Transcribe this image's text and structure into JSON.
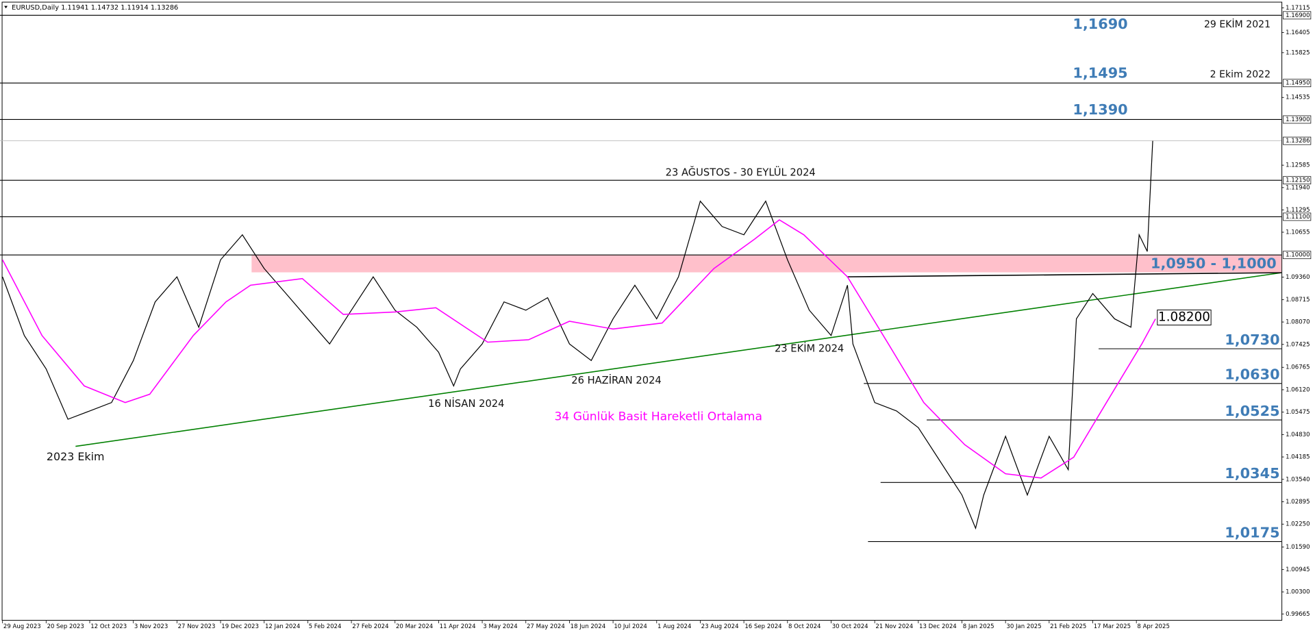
{
  "chart_data": {
    "type": "line",
    "title": "EURUSD,Daily  1.11941 1.14732 1.11914 1.13286",
    "xlim": [
      -0.923,
      469.23
    ],
    "ylim": [
      0.9947,
      1.1734
    ],
    "xticks": [
      {
        "value": 0,
        "label": "29 Aug 2023"
      },
      {
        "value": 16,
        "label": "20 Sep 2023"
      },
      {
        "value": 32,
        "label": "12 Oct 2023"
      },
      {
        "value": 48,
        "label": "3 Nov 2023"
      },
      {
        "value": 64,
        "label": "27 Nov 2023"
      },
      {
        "value": 80,
        "label": "19 Dec 2023"
      },
      {
        "value": 96,
        "label": "12 Jan 2024"
      },
      {
        "value": 112,
        "label": "5 Feb 2024"
      },
      {
        "value": 128,
        "label": "27 Feb 2024"
      },
      {
        "value": 144,
        "label": "20 Mar 2024"
      },
      {
        "value": 160,
        "label": "11 Apr 2024"
      },
      {
        "value": 176,
        "label": "3 May 2024"
      },
      {
        "value": 192,
        "label": "27 May 2024"
      },
      {
        "value": 208,
        "label": "18 Jun 2024"
      },
      {
        "value": 224,
        "label": "10 Jul 2024"
      },
      {
        "value": 240,
        "label": "1 Aug 2024"
      },
      {
        "value": 256,
        "label": "23 Aug 2024"
      },
      {
        "value": 272,
        "label": "16 Sep 2024"
      },
      {
        "value": 288,
        "label": "8 Oct 2024"
      },
      {
        "value": 304,
        "label": "30 Oct 2024"
      },
      {
        "value": 320,
        "label": "21 Nov 2024"
      },
      {
        "value": 336,
        "label": "13 Dec 2024"
      },
      {
        "value": 352,
        "label": "8 Jan 2025"
      },
      {
        "value": 368,
        "label": "30 Jan 2025"
      },
      {
        "value": 384,
        "label": "21 Feb 2025"
      },
      {
        "value": 400,
        "label": "17 Mar 2025"
      },
      {
        "value": 416,
        "label": "8 Apr 2025"
      }
    ],
    "yticks": [
      {
        "value": 1.17115,
        "label": "1.17115"
      },
      {
        "value": 1.16405,
        "label": "1.16405"
      },
      {
        "value": 1.15825,
        "label": "1.15825"
      },
      {
        "value": 1.14535,
        "label": "1.14535"
      },
      {
        "value": 1.12585,
        "label": "1.12585"
      },
      {
        "value": 1.1194,
        "label": "1.11940"
      },
      {
        "value": 1.11295,
        "label": "1.11295"
      },
      {
        "value": 1.10655,
        "label": "1.10655"
      },
      {
        "value": 1.0936,
        "label": "1.09360"
      },
      {
        "value": 1.08715,
        "label": "1.08715"
      },
      {
        "value": 1.0807,
        "label": "1.08070"
      },
      {
        "value": 1.07425,
        "label": "1.07425"
      },
      {
        "value": 1.06765,
        "label": "1.06765"
      },
      {
        "value": 1.0612,
        "label": "1.06120"
      },
      {
        "value": 1.05475,
        "label": "1.05475"
      },
      {
        "value": 1.0483,
        "label": "1.04830"
      },
      {
        "value": 1.04185,
        "label": "1.04185"
      },
      {
        "value": 1.0354,
        "label": "1.03540"
      },
      {
        "value": 1.02895,
        "label": "1.02895"
      },
      {
        "value": 1.0225,
        "label": "1.02250"
      },
      {
        "value": 1.0159,
        "label": "1.01590"
      },
      {
        "value": 1.00945,
        "label": "1.00945"
      },
      {
        "value": 1.003,
        "label": "1.00300"
      },
      {
        "value": 0.99665,
        "label": "0.99665"
      }
    ],
    "price_markers": [
      {
        "value": 1.169,
        "label": "1.16900"
      },
      {
        "value": 1.1495,
        "label": "1.14950"
      },
      {
        "value": 1.139,
        "label": "1.13900"
      },
      {
        "value": 1.13286,
        "label": "1.13286"
      },
      {
        "value": 1.1215,
        "label": "1.12150"
      },
      {
        "value": 1.111,
        "label": "1.11100"
      },
      {
        "value": 1.1,
        "label": "1.10000"
      }
    ],
    "series": [
      {
        "color": "#000000",
        "x": [
          0,
          8,
          16,
          24,
          32,
          40,
          48,
          56,
          64,
          72,
          80,
          88,
          96,
          104,
          112,
          120,
          128,
          136,
          144,
          152,
          160,
          165.5,
          168,
          176,
          184,
          192,
          200,
          208,
          216,
          224,
          232,
          240,
          248,
          256,
          264,
          272,
          280,
          288,
          296,
          304,
          310,
          312,
          320,
          328,
          336,
          344,
          352,
          357,
          360,
          368,
          376,
          384,
          391,
          394,
          400,
          408,
          414,
          417,
          420,
          422
        ],
        "values": [
          1.0937,
          1.0768,
          1.0672,
          1.0527,
          1.0551,
          1.0575,
          1.0696,
          1.0865,
          1.0937,
          1.0792,
          1.0986,
          1.1058,
          1.0961,
          1.0889,
          1.0816,
          1.0744,
          1.0841,
          1.0937,
          1.0841,
          1.0792,
          1.072,
          1.0623,
          1.0672,
          1.0744,
          1.0865,
          1.0841,
          1.0877,
          1.0744,
          1.0696,
          1.0816,
          1.0913,
          1.0816,
          1.0937,
          1.1155,
          1.1082,
          1.1058,
          1.1155,
          1.0986,
          1.0841,
          1.0768,
          1.0913,
          1.0744,
          1.0575,
          1.0551,
          1.0503,
          1.0406,
          1.0309,
          1.0213,
          1.0309,
          1.0478,
          1.0309,
          1.0478,
          1.0382,
          1.0816,
          1.0889,
          1.0816,
          1.0792,
          1.1058,
          1.101,
          1.13286
        ]
      },
      {
        "name": "34 Günlük Basit Hareketli Ortalama",
        "color": "#ff00ff",
        "x": [
          0,
          14.5,
          30,
          45,
          54,
          70,
          82,
          91,
          110,
          125,
          144,
          159,
          178,
          193,
          208,
          224,
          242,
          261,
          276,
          285,
          294,
          310,
          325,
          338,
          353,
          368,
          381,
          393,
          405,
          418,
          423
        ],
        "values": [
          1.0986,
          1.0768,
          1.0623,
          1.0575,
          1.0599,
          1.0768,
          1.0865,
          1.0913,
          1.0932,
          1.0829,
          1.0836,
          1.0848,
          1.0749,
          1.0756,
          1.0809,
          1.0787,
          1.0804,
          1.0961,
          1.1046,
          1.1101,
          1.1058,
          1.0937,
          1.0744,
          1.0575,
          1.0454,
          1.037,
          1.0358,
          1.0418,
          1.0575,
          1.0744,
          1.0816
        ]
      }
    ],
    "trendline": {
      "color": "#008000",
      "x": [
        26.8,
        469.2
      ],
      "values": [
        1.0449,
        1.0949
      ]
    },
    "neckline": {
      "color": "#000000",
      "x": [
        309.8,
        469.2
      ],
      "values": [
        1.0937,
        1.0949
      ]
    },
    "zone": {
      "from": 1.095,
      "to": 1.1,
      "color": "#ffc0cb",
      "label": "1,0950 - 1,1000"
    },
    "levels": [
      {
        "value": 1.169,
        "label": "1,1690",
        "note": "29 EKİM 2021"
      },
      {
        "value": 1.1495,
        "label": "1,1495",
        "note": "2 Ekim 2022"
      },
      {
        "value": 1.139,
        "label": "1,1390"
      },
      {
        "value": 1.1215
      },
      {
        "value": 1.111
      },
      {
        "value": 1.1
      },
      {
        "value": 1.073,
        "label": "1,0730"
      },
      {
        "value": 1.063,
        "label": "1,0630"
      },
      {
        "value": 1.0525,
        "label": "1,0525"
      },
      {
        "value": 1.0345,
        "label": "1,0345"
      },
      {
        "value": 1.0175,
        "label": "1,0175"
      }
    ],
    "marker": {
      "value": 1.082,
      "label": "1.08200"
    },
    "annotations": [
      {
        "text": "2023 Ekim"
      },
      {
        "text": "16 NİSAN 2024"
      },
      {
        "text": "26 HAZİRAN 2024"
      },
      {
        "text": "23 EKİM 2024"
      },
      {
        "text": "23 AĞUSTOS - 30 EYLÜL 2024"
      }
    ]
  }
}
